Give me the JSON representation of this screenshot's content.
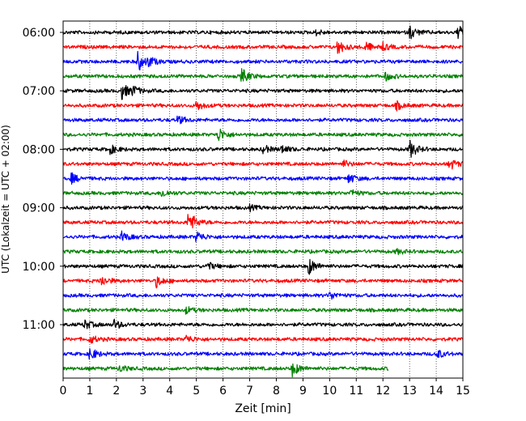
{
  "chart_data": {
    "type": "line",
    "title": "",
    "xlabel": "Zeit  [min]",
    "ylabel": "UTC (Lokalzeit = UTC + 02:00)",
    "xlim": [
      0,
      15
    ],
    "x_ticks": [
      "0",
      "1",
      "2",
      "3",
      "4",
      "5",
      "6",
      "7",
      "8",
      "9",
      "10",
      "11",
      "12",
      "13",
      "14",
      "15"
    ],
    "y_tick_labels": [
      "06:00",
      "07:00",
      "08:00",
      "09:00",
      "10:00",
      "11:00"
    ],
    "y_tick_rows": [
      0,
      4,
      8,
      12,
      16,
      20
    ],
    "grid": "x-dotted",
    "row_minutes": 15,
    "row_colors": [
      "#000000",
      "#ff0000",
      "#0000ff",
      "#008000"
    ],
    "series": [
      {
        "label": "06:00",
        "color": "#000000",
        "end_min": 15,
        "events": [
          {
            "t": 9.5,
            "a": 3
          },
          {
            "t": 13.0,
            "a": 8
          },
          {
            "t": 14.8,
            "a": 8
          }
        ]
      },
      {
        "label": "06:15",
        "color": "#ff0000",
        "end_min": 15,
        "events": [
          {
            "t": 10.3,
            "a": 9
          },
          {
            "t": 11.3,
            "a": 7
          },
          {
            "t": 12.0,
            "a": 4
          }
        ]
      },
      {
        "label": "06:30",
        "color": "#0000ff",
        "end_min": 15,
        "events": [
          {
            "t": 2.8,
            "a": 12
          },
          {
            "t": 3.2,
            "a": 5
          }
        ]
      },
      {
        "label": "06:45",
        "color": "#008000",
        "end_min": 15,
        "events": [
          {
            "t": 6.7,
            "a": 9
          },
          {
            "t": 12.1,
            "a": 5
          }
        ]
      },
      {
        "label": "07:00",
        "color": "#000000",
        "end_min": 15,
        "events": [
          {
            "t": 2.2,
            "a": 10
          },
          {
            "t": 2.6,
            "a": 5
          }
        ]
      },
      {
        "label": "07:15",
        "color": "#ff0000",
        "end_min": 15,
        "events": [
          {
            "t": 5.0,
            "a": 6
          },
          {
            "t": 12.5,
            "a": 5
          }
        ]
      },
      {
        "label": "07:30",
        "color": "#0000ff",
        "end_min": 15,
        "events": [
          {
            "t": 4.3,
            "a": 5
          }
        ]
      },
      {
        "label": "07:45",
        "color": "#008000",
        "end_min": 15,
        "events": [
          {
            "t": 5.8,
            "a": 9
          }
        ]
      },
      {
        "label": "08:00",
        "color": "#000000",
        "end_min": 15,
        "events": [
          {
            "t": 1.7,
            "a": 7
          },
          {
            "t": 7.5,
            "a": 5
          },
          {
            "t": 8.2,
            "a": 5
          },
          {
            "t": 13.0,
            "a": 11
          }
        ]
      },
      {
        "label": "08:15",
        "color": "#ff0000",
        "end_min": 15,
        "events": [
          {
            "t": 10.5,
            "a": 4
          },
          {
            "t": 14.5,
            "a": 7
          }
        ]
      },
      {
        "label": "08:30",
        "color": "#0000ff",
        "end_min": 15,
        "events": [
          {
            "t": 0.3,
            "a": 6
          },
          {
            "t": 10.7,
            "a": 6
          }
        ]
      },
      {
        "label": "08:45",
        "color": "#008000",
        "end_min": 15,
        "events": [
          {
            "t": 3.7,
            "a": 5
          },
          {
            "t": 10.8,
            "a": 4
          }
        ]
      },
      {
        "label": "09:00",
        "color": "#000000",
        "end_min": 15,
        "events": [
          {
            "t": 7.0,
            "a": 3
          }
        ]
      },
      {
        "label": "09:15",
        "color": "#ff0000",
        "end_min": 15,
        "events": [
          {
            "t": 4.7,
            "a": 15
          }
        ]
      },
      {
        "label": "09:30",
        "color": "#0000ff",
        "end_min": 15,
        "events": [
          {
            "t": 2.2,
            "a": 6
          },
          {
            "t": 5.0,
            "a": 7
          }
        ]
      },
      {
        "label": "09:45",
        "color": "#008000",
        "end_min": 15,
        "events": [
          {
            "t": 12.5,
            "a": 3
          }
        ]
      },
      {
        "label": "10:00",
        "color": "#000000",
        "end_min": 15,
        "events": [
          {
            "t": 5.4,
            "a": 5
          },
          {
            "t": 9.2,
            "a": 11
          }
        ]
      },
      {
        "label": "10:15",
        "color": "#ff0000",
        "end_min": 15,
        "events": [
          {
            "t": 1.4,
            "a": 7
          },
          {
            "t": 3.5,
            "a": 7
          }
        ]
      },
      {
        "label": "10:30",
        "color": "#0000ff",
        "end_min": 15,
        "events": [
          {
            "t": 10.0,
            "a": 5
          }
        ]
      },
      {
        "label": "10:45",
        "color": "#008000",
        "end_min": 15,
        "events": [
          {
            "t": 4.6,
            "a": 4
          }
        ]
      },
      {
        "label": "11:00",
        "color": "#000000",
        "end_min": 15,
        "events": [
          {
            "t": 0.8,
            "a": 6
          },
          {
            "t": 1.9,
            "a": 6
          }
        ]
      },
      {
        "label": "11:15",
        "color": "#ff0000",
        "end_min": 15,
        "events": [
          {
            "t": 1.0,
            "a": 5
          },
          {
            "t": 4.6,
            "a": 5
          }
        ]
      },
      {
        "label": "11:30",
        "color": "#0000ff",
        "end_min": 15,
        "events": [
          {
            "t": 1.0,
            "a": 8
          },
          {
            "t": 14.0,
            "a": 6
          }
        ]
      },
      {
        "label": "11:45",
        "color": "#008000",
        "end_min": 12.2,
        "events": [
          {
            "t": 2.1,
            "a": 4
          },
          {
            "t": 8.6,
            "a": 9
          }
        ]
      }
    ]
  }
}
